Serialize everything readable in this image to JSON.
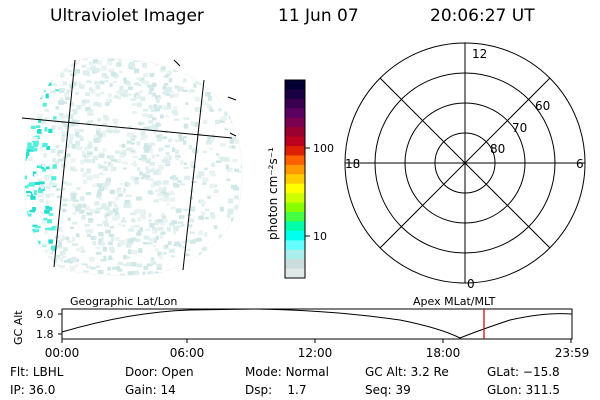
{
  "header": {
    "title": "Ultraviolet Imager",
    "date": "11 Jun 07",
    "time": "20:06:27 UT"
  },
  "colorbar": {
    "unit_label": "photon cm⁻²s⁻¹",
    "ticks": [
      {
        "label": "100",
        "value": 100
      },
      {
        "label": "10",
        "value": 10
      }
    ],
    "colors": [
      "#000033",
      "#1a0040",
      "#3a0050",
      "#5a0060",
      "#7a0050",
      "#9a0030",
      "#bb0020",
      "#dd2000",
      "#ff6000",
      "#ff9900",
      "#ffcc00",
      "#ffff00",
      "#ccff00",
      "#88ff00",
      "#44ff44",
      "#00ffaa",
      "#00ffee",
      "#66ffff",
      "#aaeeee",
      "#ccdddd",
      "#e0e8e8"
    ]
  },
  "polar_plot": {
    "hour_labels": [
      {
        "label": "12",
        "pos": "top"
      },
      {
        "label": "18",
        "pos": "left"
      },
      {
        "label": "6",
        "pos": "right"
      },
      {
        "label": "0",
        "pos": "bottom"
      }
    ],
    "latitude_labels": [
      "60",
      "70",
      "80"
    ]
  },
  "orbit": {
    "ylabel": "GC Alt",
    "y_ticks": [
      "9.0",
      "1.8"
    ],
    "left_label": "Geographic Lat/Lon",
    "right_label": "Apex MLat/MLT",
    "x_ticks": [
      "00:00",
      "06:00",
      "12:00",
      "18:00",
      "23:59"
    ],
    "current_time_marker": "20:06:27",
    "marker_color": "#cc0000"
  },
  "status": {
    "col1": [
      {
        "label": "Flt:",
        "value": "LBHL"
      },
      {
        "label": "IP:",
        "value": "36.0"
      }
    ],
    "col2": [
      {
        "label": "Door:",
        "value": "Open"
      },
      {
        "label": "Gain:",
        "value": "14"
      }
    ],
    "col3": [
      {
        "label": "Mode:",
        "value": "Normal"
      },
      {
        "label": "Dsp:",
        "value": "1.7"
      }
    ],
    "col4": [
      {
        "label": "GC Alt:",
        "value": "3.2 Re"
      },
      {
        "label": "Seq:",
        "value": "39"
      }
    ],
    "col5": [
      {
        "label": "GLat:",
        "value": "−15.8"
      },
      {
        "label": "GLon:",
        "value": "311.5"
      }
    ]
  }
}
